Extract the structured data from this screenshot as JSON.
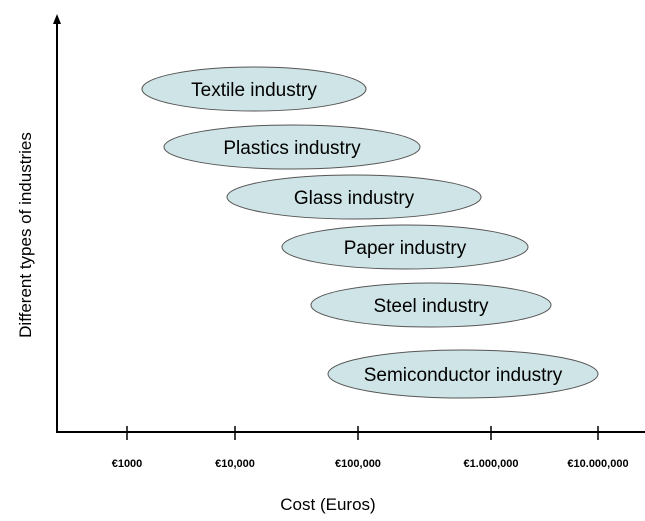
{
  "y_axis_label": "Different types of industries",
  "x_axis_label": "Cost (Euros)",
  "x_tick_labels": [
    "€1000",
    "€10,000",
    "€100,000",
    "€1.000,000",
    "€10.000,000"
  ],
  "industries": [
    "Textile industry",
    "Plastics industry",
    "Glass industry",
    "Paper industry",
    "Steel industry",
    "Semiconductor industry"
  ]
}
